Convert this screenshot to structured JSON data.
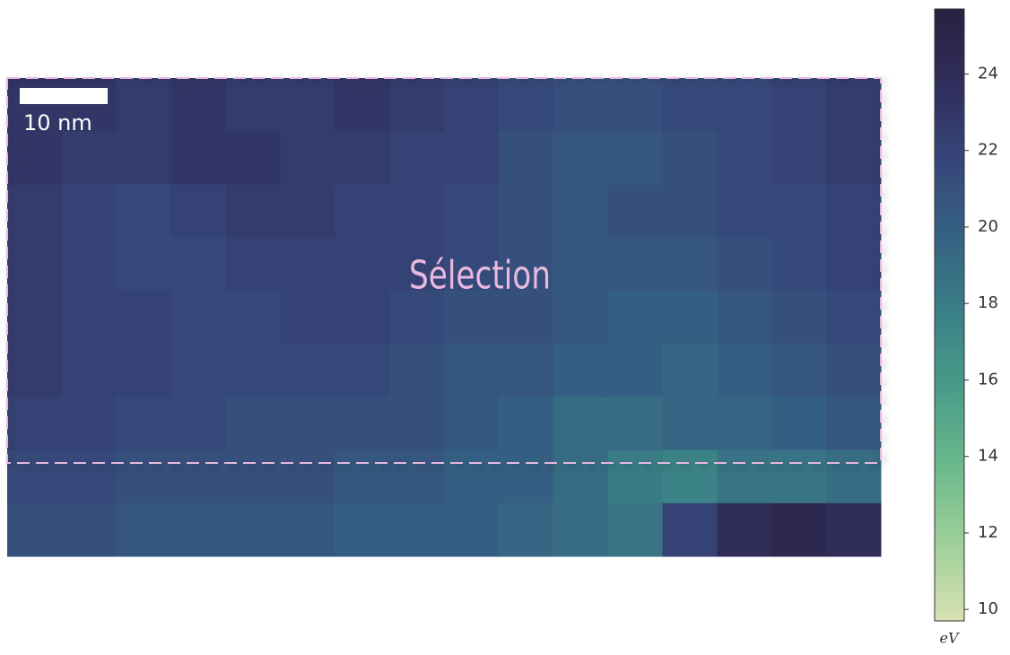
{
  "chart_data": {
    "type": "heatmap",
    "values": [
      [
        23,
        23,
        22.5,
        23,
        22.5,
        22.5,
        23,
        22.5,
        22,
        21.5,
        21,
        21,
        21.5,
        21.5,
        22,
        22.5
      ],
      [
        23,
        22.5,
        22.5,
        23,
        23,
        22.5,
        22.5,
        22,
        22,
        21,
        20.5,
        20.5,
        21,
        21.5,
        22,
        22.5
      ],
      [
        22.5,
        22,
        21.5,
        22,
        22.5,
        22.5,
        22,
        22,
        21.5,
        21,
        20.5,
        21,
        21,
        21.5,
        21.5,
        22
      ],
      [
        22.5,
        22,
        21.5,
        21.5,
        22,
        22,
        22,
        22,
        21.5,
        21,
        20.5,
        20.5,
        20.5,
        21,
        21.5,
        22
      ],
      [
        22.5,
        22,
        22,
        21.5,
        21.5,
        22,
        22,
        21.5,
        21,
        21,
        20.5,
        20,
        20,
        20.5,
        21,
        21.5
      ],
      [
        22.5,
        22,
        22,
        21.5,
        21.5,
        21.5,
        21.5,
        21,
        20.5,
        20.5,
        20,
        20,
        19.5,
        20,
        20.5,
        21
      ],
      [
        22,
        22,
        21.5,
        21.5,
        21,
        21,
        21,
        21,
        20.5,
        20,
        19,
        19,
        19.5,
        19.5,
        20,
        20.5
      ],
      [
        21.5,
        21.5,
        21,
        21,
        21,
        21,
        20.5,
        20.5,
        20,
        20,
        19,
        18,
        17.5,
        18.5,
        18.5,
        19
      ],
      [
        21,
        21,
        20.5,
        20.5,
        20.5,
        20.5,
        20,
        20,
        20,
        19.5,
        19,
        18.5,
        22,
        24,
        24.5,
        24
      ]
    ],
    "colormap": [
      "#d8e1b2",
      "#9fd09a",
      "#6cb98c",
      "#4a9d89",
      "#3a8087",
      "#356383",
      "#36467a",
      "#302e5c",
      "#28203f"
    ],
    "clim": [
      9.7,
      25.7
    ],
    "colorbar_ticks": [
      10,
      12,
      14,
      16,
      18,
      20,
      22,
      24
    ],
    "colorbar_label": "eV",
    "scale_bar_label": "10 nm",
    "annotation": "Sélection"
  }
}
